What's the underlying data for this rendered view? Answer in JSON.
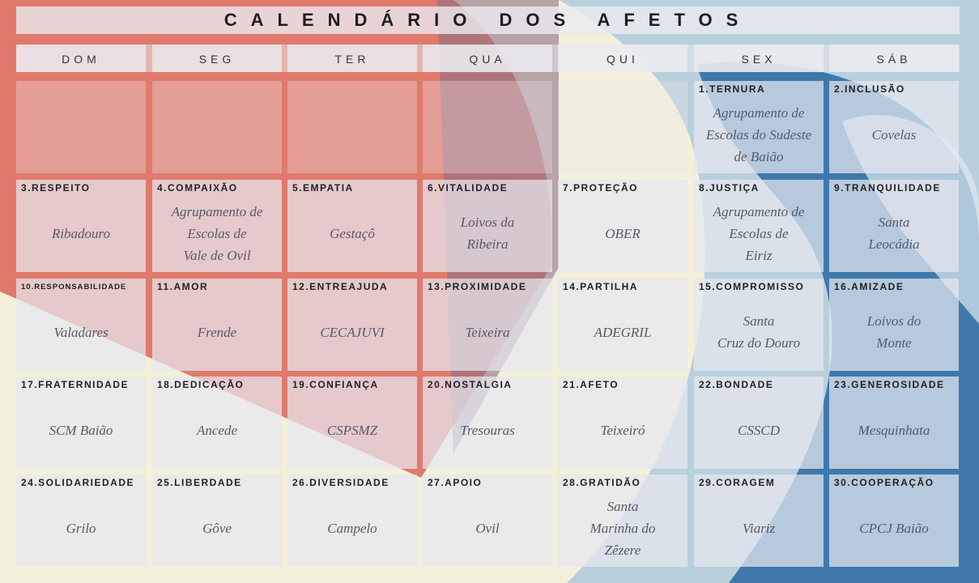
{
  "title": "CALENDÁRIO DOS AFETOS",
  "weekdays": [
    "DOM",
    "SEG",
    "TER",
    "QUA",
    "QUI",
    "SEX",
    "SÁB"
  ],
  "days": [
    {
      "label": "1.TERNURA",
      "lines": [
        "Agrupamento de",
        "Escolas do Sudeste",
        "de Baião"
      ]
    },
    {
      "label": "2.INCLUSÃO",
      "lines": [
        "Covelas"
      ]
    },
    {
      "label": "3.RESPEITO",
      "lines": [
        "Ribadouro"
      ]
    },
    {
      "label": "4.COMPAIXÃO",
      "lines": [
        "Agrupamento de",
        "Escolas de",
        "Vale de Ovil"
      ]
    },
    {
      "label": "5.EMPATIA",
      "lines": [
        "Gestaçô"
      ]
    },
    {
      "label": "6.VITALIDADE",
      "lines": [
        "Loivos da",
        "Ribeira"
      ]
    },
    {
      "label": "7.PROTEÇÃO",
      "lines": [
        "OBER"
      ]
    },
    {
      "label": "8.JUSTIÇA",
      "lines": [
        "Agrupamento de",
        "Escolas de",
        "Eiriz"
      ]
    },
    {
      "label": "9.TRANQUILIDADE",
      "lines": [
        "Santa",
        "Leocádia"
      ]
    },
    {
      "label": "10.RESPONSABILIDADE",
      "lines": [
        "Valadares"
      ]
    },
    {
      "label": "11.AMOR",
      "lines": [
        "Frende"
      ]
    },
    {
      "label": "12.ENTREAJUDA",
      "lines": [
        "CECAJUVI"
      ]
    },
    {
      "label": "13.PROXIMIDADE",
      "lines": [
        "Teixeira"
      ]
    },
    {
      "label": "14.PARTILHA",
      "lines": [
        "ADEGRIL"
      ]
    },
    {
      "label": "15.COMPROMISSO",
      "lines": [
        "Santa",
        "Cruz do Douro"
      ]
    },
    {
      "label": "16.AMIZADE",
      "lines": [
        "Loivos do",
        "Monte"
      ]
    },
    {
      "label": "17.FRATERNIDADE",
      "lines": [
        "SCM Baião"
      ]
    },
    {
      "label": "18.DEDICAÇÃO",
      "lines": [
        "Ancede"
      ]
    },
    {
      "label": "19.CONFIANÇA",
      "lines": [
        "CSPSMZ"
      ]
    },
    {
      "label": "20.NOSTALGIA",
      "lines": [
        "Tresouras"
      ]
    },
    {
      "label": "21.AFETO",
      "lines": [
        "Teixeiró"
      ]
    },
    {
      "label": "22.BONDADE",
      "lines": [
        "CSSCD"
      ]
    },
    {
      "label": "23.GENEROSIDADE",
      "lines": [
        "Mesquinhata"
      ]
    },
    {
      "label": "24.SOLIDARIEDADE",
      "lines": [
        "Grilo"
      ]
    },
    {
      "label": "25.LIBERDADE",
      "lines": [
        "Gôve"
      ]
    },
    {
      "label": "26.DIVERSIDADE",
      "lines": [
        "Campelo"
      ]
    },
    {
      "label": "27.APOIO",
      "lines": [
        "Ovil"
      ]
    },
    {
      "label": "28.GRATIDÃO",
      "lines": [
        "Santa",
        "Marinha do",
        "Zêzere"
      ]
    },
    {
      "label": "29.CORAGEM",
      "lines": [
        "Viariz"
      ]
    },
    {
      "label": "30.COOPERAÇÃO",
      "lines": [
        "CPCJ Baião"
      ]
    }
  ]
}
